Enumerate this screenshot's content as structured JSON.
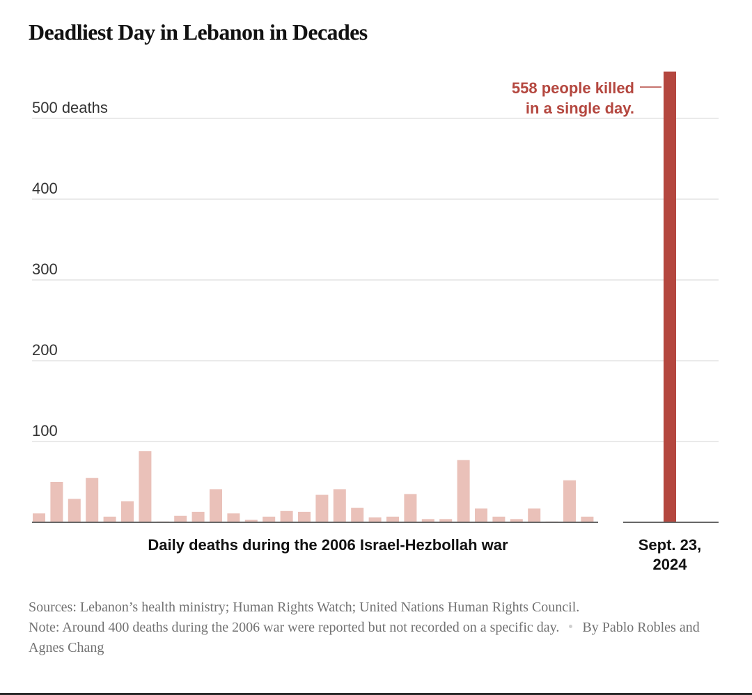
{
  "chart_data": {
    "type": "bar",
    "title": "Deadliest Day in Lebanon in Decades",
    "ylim": [
      0,
      558
    ],
    "y_ticks": [
      100,
      200,
      300,
      400,
      500
    ],
    "y_tick_labels": [
      "100",
      "200",
      "300",
      "400",
      "500 deaths"
    ],
    "grid": true,
    "series": [
      {
        "name": "Daily deaths during the 2006 Israel-Hezbollah war",
        "values": [
          11,
          50,
          29,
          55,
          7,
          26,
          88,
          1,
          8,
          13,
          41,
          11,
          3,
          7,
          14,
          13,
          34,
          41,
          18,
          6,
          7,
          35,
          4,
          4,
          77,
          17,
          7,
          4,
          17,
          1,
          52,
          7
        ],
        "color": "#eac1b9"
      },
      {
        "name": "Sept. 23, 2024",
        "values": [
          558
        ],
        "color": "#b4473f"
      }
    ],
    "group_labels": [
      "Daily deaths during the 2006 Israel-Hezbollah war",
      "Sept. 23, 2024"
    ],
    "annotation": {
      "lines": [
        "558 people killed",
        "in a single day."
      ],
      "value": 558,
      "color": "#b4473f"
    }
  },
  "footer": {
    "sources": "Sources: Lebanon’s health ministry; Human Rights Watch; United Nations Human Rights Council.",
    "note": "Note: Around 400 deaths during the 2006 war were reported but not recorded on a specific day.",
    "byline": "By Pablo Robles and Agnes Chang"
  }
}
